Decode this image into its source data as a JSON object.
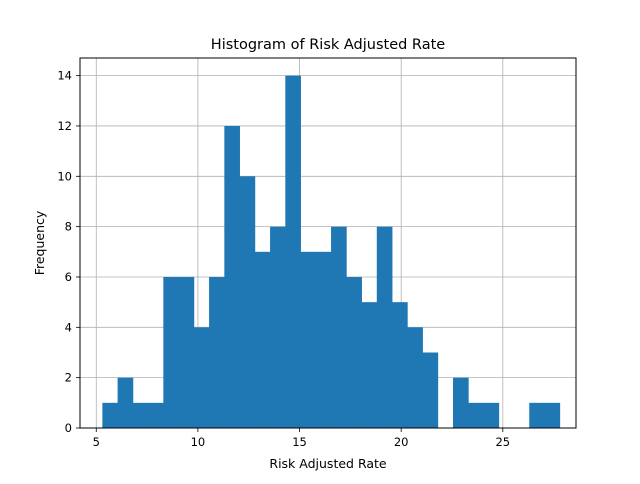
{
  "chart_data": {
    "type": "bar",
    "title": "Histogram of Risk Adjusted Rate",
    "xlabel": "Risk Adjusted Rate",
    "ylabel": "Frequency",
    "xlim": [
      4.2,
      28.6
    ],
    "ylim": [
      0,
      14.7
    ],
    "xticks": [
      5,
      10,
      15,
      20,
      25
    ],
    "yticks": [
      0,
      2,
      4,
      6,
      8,
      10,
      12,
      14
    ],
    "grid": true,
    "bar_color": "#1f77b4",
    "bins": [
      {
        "x0": 5.3,
        "x1": 6.05,
        "count": 1
      },
      {
        "x0": 6.05,
        "x1": 6.8,
        "count": 2
      },
      {
        "x0": 6.8,
        "x1": 7.55,
        "count": 1
      },
      {
        "x0": 7.55,
        "x1": 8.3,
        "count": 1
      },
      {
        "x0": 8.3,
        "x1": 9.05,
        "count": 6
      },
      {
        "x0": 9.05,
        "x1": 9.8,
        "count": 6
      },
      {
        "x0": 9.8,
        "x1": 10.55,
        "count": 4
      },
      {
        "x0": 10.55,
        "x1": 11.3,
        "count": 6
      },
      {
        "x0": 11.3,
        "x1": 12.05,
        "count": 12
      },
      {
        "x0": 12.05,
        "x1": 12.8,
        "count": 10
      },
      {
        "x0": 12.8,
        "x1": 13.55,
        "count": 7
      },
      {
        "x0": 13.55,
        "x1": 14.3,
        "count": 8
      },
      {
        "x0": 14.3,
        "x1": 15.05,
        "count": 14
      },
      {
        "x0": 15.05,
        "x1": 15.8,
        "count": 7
      },
      {
        "x0": 15.8,
        "x1": 16.55,
        "count": 7
      },
      {
        "x0": 16.55,
        "x1": 17.3,
        "count": 8
      },
      {
        "x0": 17.3,
        "x1": 18.05,
        "count": 6
      },
      {
        "x0": 18.05,
        "x1": 18.8,
        "count": 5
      },
      {
        "x0": 18.8,
        "x1": 19.55,
        "count": 8
      },
      {
        "x0": 19.55,
        "x1": 20.3,
        "count": 5
      },
      {
        "x0": 20.3,
        "x1": 21.05,
        "count": 4
      },
      {
        "x0": 21.05,
        "x1": 21.8,
        "count": 3
      },
      {
        "x0": 21.8,
        "x1": 22.55,
        "count": 0
      },
      {
        "x0": 22.55,
        "x1": 23.3,
        "count": 2
      },
      {
        "x0": 23.3,
        "x1": 24.05,
        "count": 1
      },
      {
        "x0": 24.05,
        "x1": 24.8,
        "count": 1
      },
      {
        "x0": 24.8,
        "x1": 25.55,
        "count": 0
      },
      {
        "x0": 25.55,
        "x1": 26.3,
        "count": 0
      },
      {
        "x0": 26.3,
        "x1": 27.05,
        "count": 1
      },
      {
        "x0": 27.05,
        "x1": 27.8,
        "count": 1
      }
    ]
  }
}
